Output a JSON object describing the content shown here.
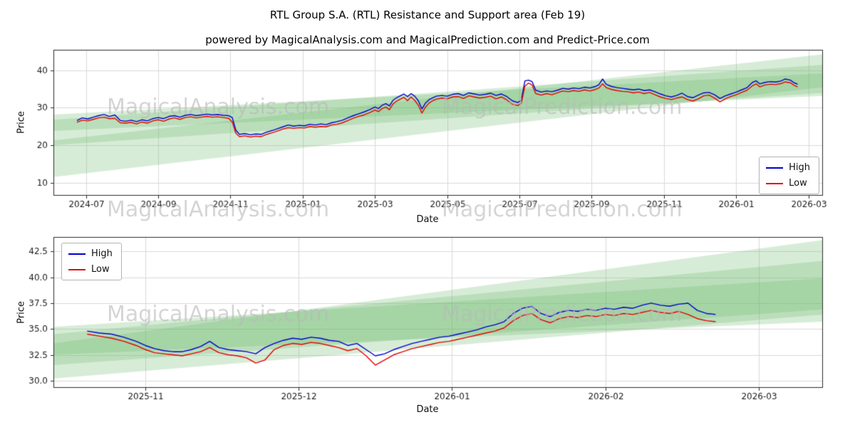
{
  "page": {
    "title": "RTL Group S.A. (RTL) Resistance and Support area (Feb 19)",
    "subtitle": "powered by MagicalAnalysis.com and MagicalPrediction.com and Predict-Price.com",
    "watermark_left": "MagicalAnalysis.com",
    "watermark_right": "MagicalPrediction.com"
  },
  "colors": {
    "high": "#0000cd",
    "low": "#e60000",
    "band": "rgba(110,185,110,0.28)",
    "grid": "#d9d9d9",
    "spine": "#2b2b2b",
    "tick_text": "#1a1a1a"
  },
  "chart_data": [
    {
      "type": "line",
      "title": "",
      "xlabel": "Date",
      "ylabel": "Price",
      "x_unit": "months since 2024-06-01",
      "xlim": [
        0.1,
        21.4
      ],
      "ylim": [
        6.5,
        45.5
      ],
      "grid": true,
      "xticks": [
        [
          1,
          "2024-07"
        ],
        [
          3,
          "2024-09"
        ],
        [
          5,
          "2024-11"
        ],
        [
          7,
          "2025-01"
        ],
        [
          9,
          "2025-03"
        ],
        [
          11,
          "2025-05"
        ],
        [
          13,
          "2025-07"
        ],
        [
          15,
          "2025-09"
        ],
        [
          17,
          "2025-11"
        ],
        [
          19,
          "2026-01"
        ],
        [
          21,
          "2026-03"
        ]
      ],
      "yticks": [
        [
          10,
          "10"
        ],
        [
          20,
          "20"
        ],
        [
          30,
          "30"
        ],
        [
          40,
          "40"
        ]
      ],
      "legend": {
        "position": "center right",
        "entries": [
          {
            "label": "High",
            "color": "#0000cd"
          },
          {
            "label": "Low",
            "color": "#e60000"
          }
        ]
      },
      "bands": [
        [
          0.1,
          11.5,
          21.3,
          21.4,
          35.5,
          44.3
        ],
        [
          0.1,
          20.0,
          26.8,
          21.4,
          34.0,
          41.5
        ],
        [
          0.1,
          23.8,
          28.2,
          21.4,
          33.2,
          39.2
        ]
      ],
      "columns": [
        "t",
        "high",
        "low"
      ],
      "points": [
        [
          0.75,
          26.6,
          26.1
        ],
        [
          0.9,
          27.3,
          26.7
        ],
        [
          1.05,
          27.0,
          26.5
        ],
        [
          1.2,
          27.5,
          26.9
        ],
        [
          1.35,
          27.9,
          27.3
        ],
        [
          1.5,
          28.2,
          27.5
        ],
        [
          1.65,
          27.7,
          27.1
        ],
        [
          1.8,
          28.1,
          27.2
        ],
        [
          1.95,
          26.6,
          26.0
        ],
        [
          2.1,
          26.4,
          25.9
        ],
        [
          2.25,
          26.7,
          26.1
        ],
        [
          2.4,
          26.3,
          25.7
        ],
        [
          2.55,
          26.8,
          26.2
        ],
        [
          2.7,
          26.5,
          25.9
        ],
        [
          2.85,
          27.1,
          26.5
        ],
        [
          3.0,
          27.4,
          26.8
        ],
        [
          3.15,
          27.1,
          26.4
        ],
        [
          3.3,
          27.7,
          27.0
        ],
        [
          3.45,
          27.9,
          27.3
        ],
        [
          3.6,
          27.5,
          26.9
        ],
        [
          3.75,
          28.0,
          27.4
        ],
        [
          3.9,
          28.2,
          27.6
        ],
        [
          4.05,
          27.9,
          27.3
        ],
        [
          4.2,
          28.1,
          27.5
        ],
        [
          4.35,
          28.3,
          27.7
        ],
        [
          4.5,
          28.1,
          27.5
        ],
        [
          4.65,
          28.2,
          27.6
        ],
        [
          4.8,
          28.0,
          27.4
        ],
        [
          4.95,
          27.9,
          27.2
        ],
        [
          5.05,
          27.4,
          26.2
        ],
        [
          5.15,
          24.0,
          23.2
        ],
        [
          5.25,
          22.9,
          22.3
        ],
        [
          5.4,
          23.1,
          22.5
        ],
        [
          5.55,
          22.8,
          22.2
        ],
        [
          5.7,
          23.0,
          22.4
        ],
        [
          5.85,
          22.9,
          22.3
        ],
        [
          6.0,
          23.5,
          22.9
        ],
        [
          6.15,
          23.9,
          23.3
        ],
        [
          6.3,
          24.4,
          23.8
        ],
        [
          6.45,
          24.9,
          24.3
        ],
        [
          6.6,
          25.4,
          24.7
        ],
        [
          6.75,
          25.1,
          24.5
        ],
        [
          6.9,
          25.3,
          24.7
        ],
        [
          7.05,
          25.2,
          24.6
        ],
        [
          7.2,
          25.6,
          25.0
        ],
        [
          7.35,
          25.4,
          24.8
        ],
        [
          7.5,
          25.7,
          25.0
        ],
        [
          7.65,
          25.5,
          24.9
        ],
        [
          7.8,
          26.0,
          25.4
        ],
        [
          7.95,
          26.3,
          25.6
        ],
        [
          8.1,
          26.7,
          26.0
        ],
        [
          8.25,
          27.3,
          26.6
        ],
        [
          8.4,
          27.9,
          27.2
        ],
        [
          8.55,
          28.4,
          27.7
        ],
        [
          8.7,
          28.9,
          28.1
        ],
        [
          8.85,
          29.5,
          28.7
        ],
        [
          9.0,
          30.2,
          29.4
        ],
        [
          9.1,
          29.8,
          29.0
        ],
        [
          9.2,
          30.7,
          29.8
        ],
        [
          9.3,
          31.1,
          30.2
        ],
        [
          9.4,
          30.5,
          29.5
        ],
        [
          9.5,
          32.0,
          31.0
        ],
        [
          9.6,
          32.7,
          31.8
        ],
        [
          9.7,
          33.2,
          32.3
        ],
        [
          9.8,
          33.7,
          32.8
        ],
        [
          9.9,
          33.0,
          31.9
        ],
        [
          10.0,
          33.8,
          32.9
        ],
        [
          10.1,
          33.1,
          32.0
        ],
        [
          10.2,
          31.9,
          30.7
        ],
        [
          10.3,
          29.7,
          28.6
        ],
        [
          10.4,
          31.3,
          30.2
        ],
        [
          10.5,
          32.2,
          31.3
        ],
        [
          10.6,
          32.7,
          31.9
        ],
        [
          10.7,
          33.1,
          32.3
        ],
        [
          10.85,
          33.3,
          32.6
        ],
        [
          11.0,
          33.1,
          32.4
        ],
        [
          11.15,
          33.6,
          32.9
        ],
        [
          11.3,
          33.8,
          33.0
        ],
        [
          11.45,
          33.3,
          32.5
        ],
        [
          11.6,
          34.0,
          33.2
        ],
        [
          11.75,
          33.7,
          32.9
        ],
        [
          11.9,
          33.4,
          32.6
        ],
        [
          12.05,
          33.6,
          32.8
        ],
        [
          12.2,
          33.9,
          33.1
        ],
        [
          12.35,
          33.3,
          32.4
        ],
        [
          12.5,
          33.7,
          32.9
        ],
        [
          12.65,
          33.0,
          32.1
        ],
        [
          12.8,
          31.9,
          31.0
        ],
        [
          12.95,
          31.4,
          30.6
        ],
        [
          13.05,
          32.0,
          31.2
        ],
        [
          13.15,
          37.2,
          35.8
        ],
        [
          13.25,
          37.4,
          36.6
        ],
        [
          13.35,
          37.0,
          36.1
        ],
        [
          13.45,
          34.7,
          33.8
        ],
        [
          13.6,
          34.2,
          33.4
        ],
        [
          13.75,
          34.5,
          33.8
        ],
        [
          13.9,
          34.3,
          33.5
        ],
        [
          14.05,
          34.7,
          34.0
        ],
        [
          14.2,
          35.2,
          34.5
        ],
        [
          14.35,
          35.0,
          34.3
        ],
        [
          14.5,
          35.3,
          34.6
        ],
        [
          14.65,
          35.1,
          34.4
        ],
        [
          14.8,
          35.5,
          34.8
        ],
        [
          14.95,
          35.3,
          34.5
        ],
        [
          15.1,
          35.7,
          34.9
        ],
        [
          15.2,
          36.2,
          35.3
        ],
        [
          15.3,
          37.7,
          36.4
        ],
        [
          15.4,
          36.3,
          35.4
        ],
        [
          15.55,
          35.7,
          34.9
        ],
        [
          15.7,
          35.4,
          34.6
        ],
        [
          15.85,
          35.2,
          34.4
        ],
        [
          16.0,
          35.0,
          34.3
        ],
        [
          16.15,
          34.8,
          34.0
        ],
        [
          16.3,
          35.0,
          34.2
        ],
        [
          16.45,
          34.6,
          33.8
        ],
        [
          16.6,
          34.8,
          34.1
        ],
        [
          16.75,
          34.3,
          33.5
        ],
        [
          16.9,
          33.7,
          32.9
        ],
        [
          17.05,
          33.2,
          32.5
        ],
        [
          17.2,
          32.9,
          32.2
        ],
        [
          17.35,
          33.3,
          32.6
        ],
        [
          17.5,
          33.9,
          32.9
        ],
        [
          17.65,
          33.0,
          32.2
        ],
        [
          17.8,
          32.7,
          31.8
        ],
        [
          17.95,
          33.4,
          32.4
        ],
        [
          18.1,
          34.0,
          33.2
        ],
        [
          18.25,
          34.1,
          33.4
        ],
        [
          18.4,
          33.5,
          32.6
        ],
        [
          18.55,
          32.5,
          31.6
        ],
        [
          18.7,
          33.2,
          32.4
        ],
        [
          18.85,
          33.7,
          33.0
        ],
        [
          19.0,
          34.2,
          33.5
        ],
        [
          19.15,
          34.8,
          34.1
        ],
        [
          19.3,
          35.4,
          34.7
        ],
        [
          19.45,
          36.8,
          35.9
        ],
        [
          19.55,
          37.2,
          36.4
        ],
        [
          19.65,
          36.4,
          35.6
        ],
        [
          19.8,
          36.8,
          36.1
        ],
        [
          19.95,
          37.0,
          36.3
        ],
        [
          20.1,
          36.9,
          36.2
        ],
        [
          20.25,
          37.2,
          36.5
        ],
        [
          20.35,
          37.7,
          36.9
        ],
        [
          20.5,
          37.4,
          36.7
        ],
        [
          20.6,
          36.7,
          36.0
        ],
        [
          20.7,
          36.3,
          35.6
        ]
      ]
    },
    {
      "type": "line",
      "title": "",
      "xlabel": "Date",
      "ylabel": "Price",
      "x_unit": "months since 2024-06-01",
      "xlim": [
        16.4,
        21.42
      ],
      "ylim": [
        29.3,
        43.9
      ],
      "grid": true,
      "xticks": [
        [
          17,
          "2025-11"
        ],
        [
          18,
          "2025-12"
        ],
        [
          19,
          "2026-01"
        ],
        [
          20,
          "2026-02"
        ],
        [
          21,
          "2026-03"
        ]
      ],
      "yticks": [
        [
          30,
          "30.0"
        ],
        [
          32.5,
          "32.5"
        ],
        [
          35,
          "35.0"
        ],
        [
          37.5,
          "37.5"
        ],
        [
          40,
          "40.0"
        ],
        [
          42.5,
          "42.5"
        ]
      ],
      "legend": {
        "position": "upper left",
        "entries": [
          {
            "label": "High",
            "color": "#0000cd"
          },
          {
            "label": "Low",
            "color": "#e60000"
          }
        ]
      },
      "bands": [
        [
          16.4,
          30.2,
          33.6,
          21.42,
          36.4,
          43.6
        ],
        [
          16.4,
          31.5,
          34.5,
          21.42,
          36.9,
          41.6
        ],
        [
          16.4,
          32.5,
          35.2,
          21.42,
          35.7,
          39.9
        ]
      ],
      "columns": [
        "t",
        "high",
        "low"
      ],
      "points": [
        [
          16.62,
          34.8,
          34.5
        ],
        [
          16.7,
          34.6,
          34.3
        ],
        [
          16.78,
          34.5,
          34.1
        ],
        [
          16.86,
          34.2,
          33.8
        ],
        [
          16.94,
          33.8,
          33.4
        ],
        [
          17.0,
          33.4,
          33.0
        ],
        [
          17.06,
          33.1,
          32.7
        ],
        [
          17.12,
          32.9,
          32.6
        ],
        [
          17.18,
          32.8,
          32.5
        ],
        [
          17.24,
          32.8,
          32.4
        ],
        [
          17.3,
          33.0,
          32.6
        ],
        [
          17.36,
          33.3,
          32.8
        ],
        [
          17.42,
          33.8,
          33.2
        ],
        [
          17.48,
          33.2,
          32.7
        ],
        [
          17.54,
          33.0,
          32.5
        ],
        [
          17.6,
          32.9,
          32.4
        ],
        [
          17.66,
          32.8,
          32.2
        ],
        [
          17.72,
          32.6,
          31.7
        ],
        [
          17.78,
          33.2,
          32.0
        ],
        [
          17.84,
          33.6,
          33.0
        ],
        [
          17.9,
          33.9,
          33.4
        ],
        [
          17.96,
          34.1,
          33.6
        ],
        [
          18.02,
          34.0,
          33.5
        ],
        [
          18.08,
          34.2,
          33.7
        ],
        [
          18.14,
          34.1,
          33.6
        ],
        [
          18.2,
          33.9,
          33.4
        ],
        [
          18.26,
          33.8,
          33.2
        ],
        [
          18.32,
          33.4,
          32.9
        ],
        [
          18.38,
          33.6,
          33.1
        ],
        [
          18.44,
          33.0,
          32.4
        ],
        [
          18.5,
          32.4,
          31.5
        ],
        [
          18.56,
          32.6,
          32.0
        ],
        [
          18.62,
          33.0,
          32.5
        ],
        [
          18.68,
          33.3,
          32.8
        ],
        [
          18.74,
          33.6,
          33.1
        ],
        [
          18.8,
          33.8,
          33.3
        ],
        [
          18.86,
          34.0,
          33.5
        ],
        [
          18.92,
          34.2,
          33.7
        ],
        [
          18.98,
          34.3,
          33.8
        ],
        [
          19.04,
          34.5,
          34.0
        ],
        [
          19.1,
          34.7,
          34.2
        ],
        [
          19.16,
          34.9,
          34.4
        ],
        [
          19.22,
          35.2,
          34.6
        ],
        [
          19.28,
          35.4,
          34.8
        ],
        [
          19.34,
          35.7,
          35.1
        ],
        [
          19.4,
          36.5,
          35.8
        ],
        [
          19.46,
          37.0,
          36.3
        ],
        [
          19.52,
          37.2,
          36.5
        ],
        [
          19.58,
          36.5,
          35.9
        ],
        [
          19.64,
          36.2,
          35.6
        ],
        [
          19.7,
          36.6,
          36.0
        ],
        [
          19.76,
          36.8,
          36.2
        ],
        [
          19.82,
          36.7,
          36.1
        ],
        [
          19.88,
          36.9,
          36.3
        ],
        [
          19.94,
          36.8,
          36.2
        ],
        [
          20.0,
          37.0,
          36.4
        ],
        [
          20.06,
          36.9,
          36.3
        ],
        [
          20.12,
          37.1,
          36.5
        ],
        [
          20.18,
          37.0,
          36.4
        ],
        [
          20.24,
          37.3,
          36.6
        ],
        [
          20.3,
          37.5,
          36.8
        ],
        [
          20.36,
          37.3,
          36.6
        ],
        [
          20.42,
          37.2,
          36.5
        ],
        [
          20.48,
          37.4,
          36.7
        ],
        [
          20.54,
          37.5,
          36.4
        ],
        [
          20.6,
          36.8,
          36.0
        ],
        [
          20.66,
          36.5,
          35.8
        ],
        [
          20.72,
          36.4,
          35.7
        ]
      ]
    }
  ]
}
